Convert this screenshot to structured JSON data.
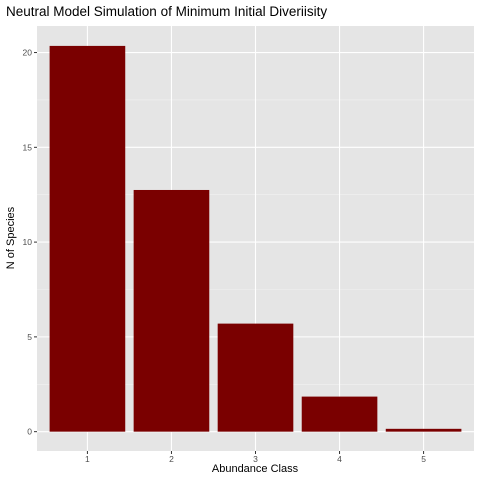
{
  "chart_data": {
    "type": "bar",
    "title": "Neutral Model Simulation of Minimum Initial Diveriisity",
    "xlabel": "Abundance Class",
    "ylabel": "N of Species",
    "categories": [
      "1",
      "2",
      "3",
      "4",
      "5"
    ],
    "values": [
      20.35,
      12.75,
      5.7,
      1.85,
      0.15
    ],
    "ylim": [
      -1.02,
      21.4
    ],
    "yticks": [
      0,
      5,
      10,
      15,
      20
    ],
    "bar_color": "#7A0000",
    "panel_background": "#E5E5E5",
    "grid": true,
    "legend": "none"
  }
}
